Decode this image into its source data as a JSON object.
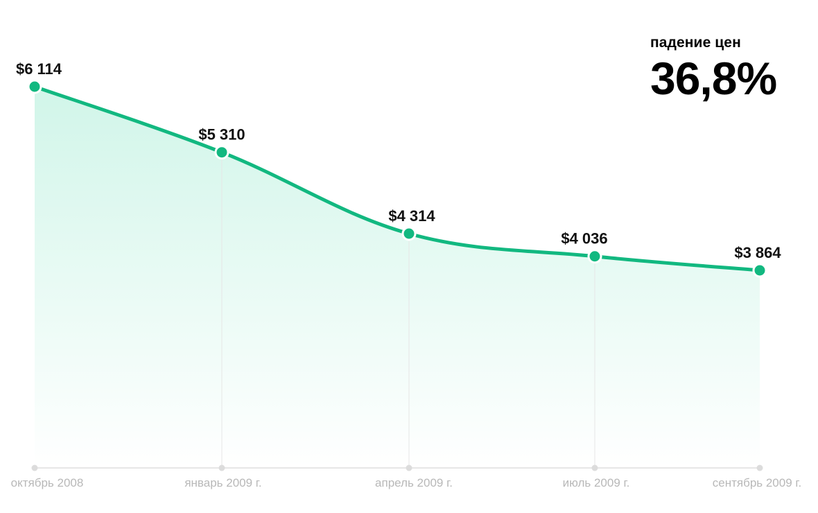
{
  "summary": {
    "label": "падение цен",
    "value": "36,8%"
  },
  "colors": {
    "line": "#12b880",
    "area": "#2dd39b",
    "axis": "#e6e6e6",
    "tick_text": "#b8b8b8"
  },
  "chart_data": {
    "type": "area",
    "categories": [
      "октябрь 2008",
      "январь 2009 г.",
      "апрель 2009 г.",
      "июль 2009 г.",
      "сентябрь 2009 г."
    ],
    "values": [
      6114,
      5310,
      4314,
      4036,
      3864
    ],
    "value_labels": [
      "$6 114",
      "$5 310",
      "$4 314",
      "$4 036",
      "$3 864"
    ],
    "ylim": [
      0,
      7000
    ],
    "grid": false,
    "smooth": true
  }
}
